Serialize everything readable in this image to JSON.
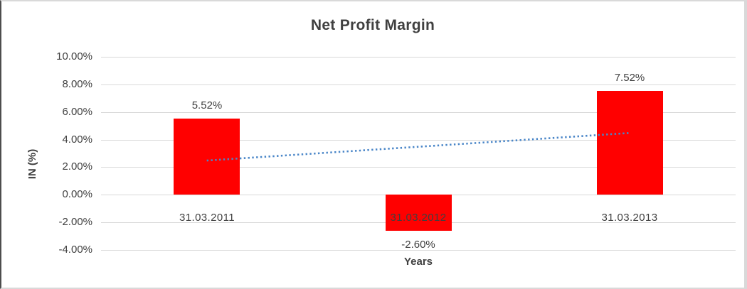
{
  "frame": {
    "background": "#ffffff",
    "border_color": "#d9d9d9",
    "left_edge_color": "#4d4d4d"
  },
  "chart_data": {
    "type": "bar",
    "title": "Net Profit Margin",
    "xlabel": "Years",
    "ylabel": "IN (%)",
    "categories": [
      "31.03.2011",
      "31.03.2012",
      "31.03.2013"
    ],
    "series": [
      {
        "name": "Net Profit Margin",
        "color": "#ff0000",
        "values": [
          5.52,
          -2.6,
          7.52
        ],
        "data_labels": [
          "5.52%",
          "-2.60%",
          "7.52%"
        ]
      }
    ],
    "ylim": [
      -4,
      10
    ],
    "ytick_step": 2,
    "yticks": [
      {
        "value": 10,
        "label": "10.00%"
      },
      {
        "value": 8,
        "label": "8.00%"
      },
      {
        "value": 6,
        "label": "6.00%"
      },
      {
        "value": 4,
        "label": "4.00%"
      },
      {
        "value": 2,
        "label": "2.00%"
      },
      {
        "value": 0,
        "label": "0.00%"
      },
      {
        "value": -2,
        "label": "-2.00%"
      },
      {
        "value": -4,
        "label": "-4.00%"
      }
    ],
    "grid": true,
    "gridline_color": "#d9d9d9",
    "text_color": "#404040",
    "legend": "none",
    "trendline": {
      "type": "linear",
      "line_style": "dotted",
      "color": "#4a86c8",
      "start_value": 2.48,
      "end_value": 4.48
    }
  }
}
